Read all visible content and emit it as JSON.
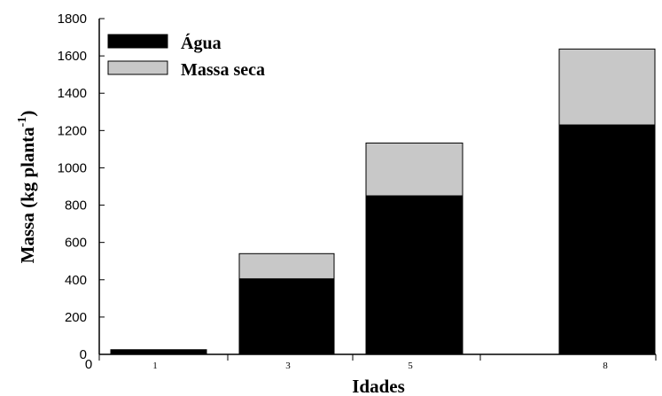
{
  "chart_data": {
    "type": "bar",
    "stacked": true,
    "categories": [
      "1",
      "3",
      "5",
      "8"
    ],
    "series": [
      {
        "name": "Água",
        "values": [
          25,
          405,
          850,
          1230
        ],
        "color": "#000000"
      },
      {
        "name": "Massa seca",
        "values": [
          0,
          135,
          283,
          407
        ],
        "color": "#c8c8c8"
      }
    ],
    "xlabel": "Idades",
    "ylabel": "Massa (kg planta",
    "ylabel_superscript": "-1",
    "ylabel_close": ")",
    "ylim": [
      0,
      1800
    ],
    "yticks": [
      0,
      200,
      400,
      600,
      800,
      1000,
      1200,
      1400,
      1600,
      1800
    ],
    "x_origin_label": "0",
    "legend_position": "top-left",
    "grid": false
  }
}
